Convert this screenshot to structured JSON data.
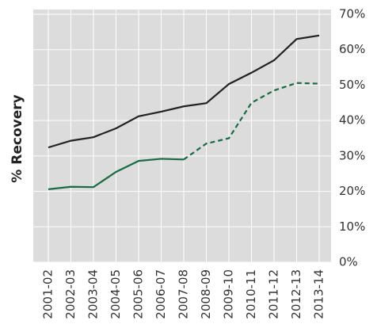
{
  "chart_data": {
    "type": "line",
    "y_label": "% Recovery",
    "categories": [
      "2001-02",
      "2002-03",
      "2003-04",
      "2004-05",
      "2005-06",
      "2006-07",
      "2007-08",
      "2008-09",
      "2009-10",
      "2010-11",
      "2011-12",
      "2012-13",
      "2013-14"
    ],
    "series": [
      {
        "color": "#222222",
        "values": [
          32.4,
          34.3,
          35.3,
          37.8,
          41.2,
          42.5,
          44.0,
          44.9,
          50.3,
          53.5,
          57.0,
          63.0,
          64.0
        ]
      },
      {
        "color": "#1a6b45",
        "dashed_from": 6,
        "values": [
          20.6,
          21.3,
          21.2,
          25.5,
          28.6,
          29.2,
          29.0,
          33.5,
          35.0,
          45.0,
          48.5,
          50.6,
          50.4
        ]
      }
    ],
    "ylim": [
      0,
      70
    ],
    "yticks": [
      {
        "value": 0,
        "label": "0%"
      },
      {
        "value": 10,
        "label": "10%"
      },
      {
        "value": 20,
        "label": "20%"
      },
      {
        "value": 30,
        "label": "30%"
      },
      {
        "value": 40,
        "label": "40%"
      },
      {
        "value": 50,
        "label": "50%"
      },
      {
        "value": 60,
        "label": "60%"
      },
      {
        "value": 70,
        "label": "70%"
      }
    ],
    "grid": true
  }
}
